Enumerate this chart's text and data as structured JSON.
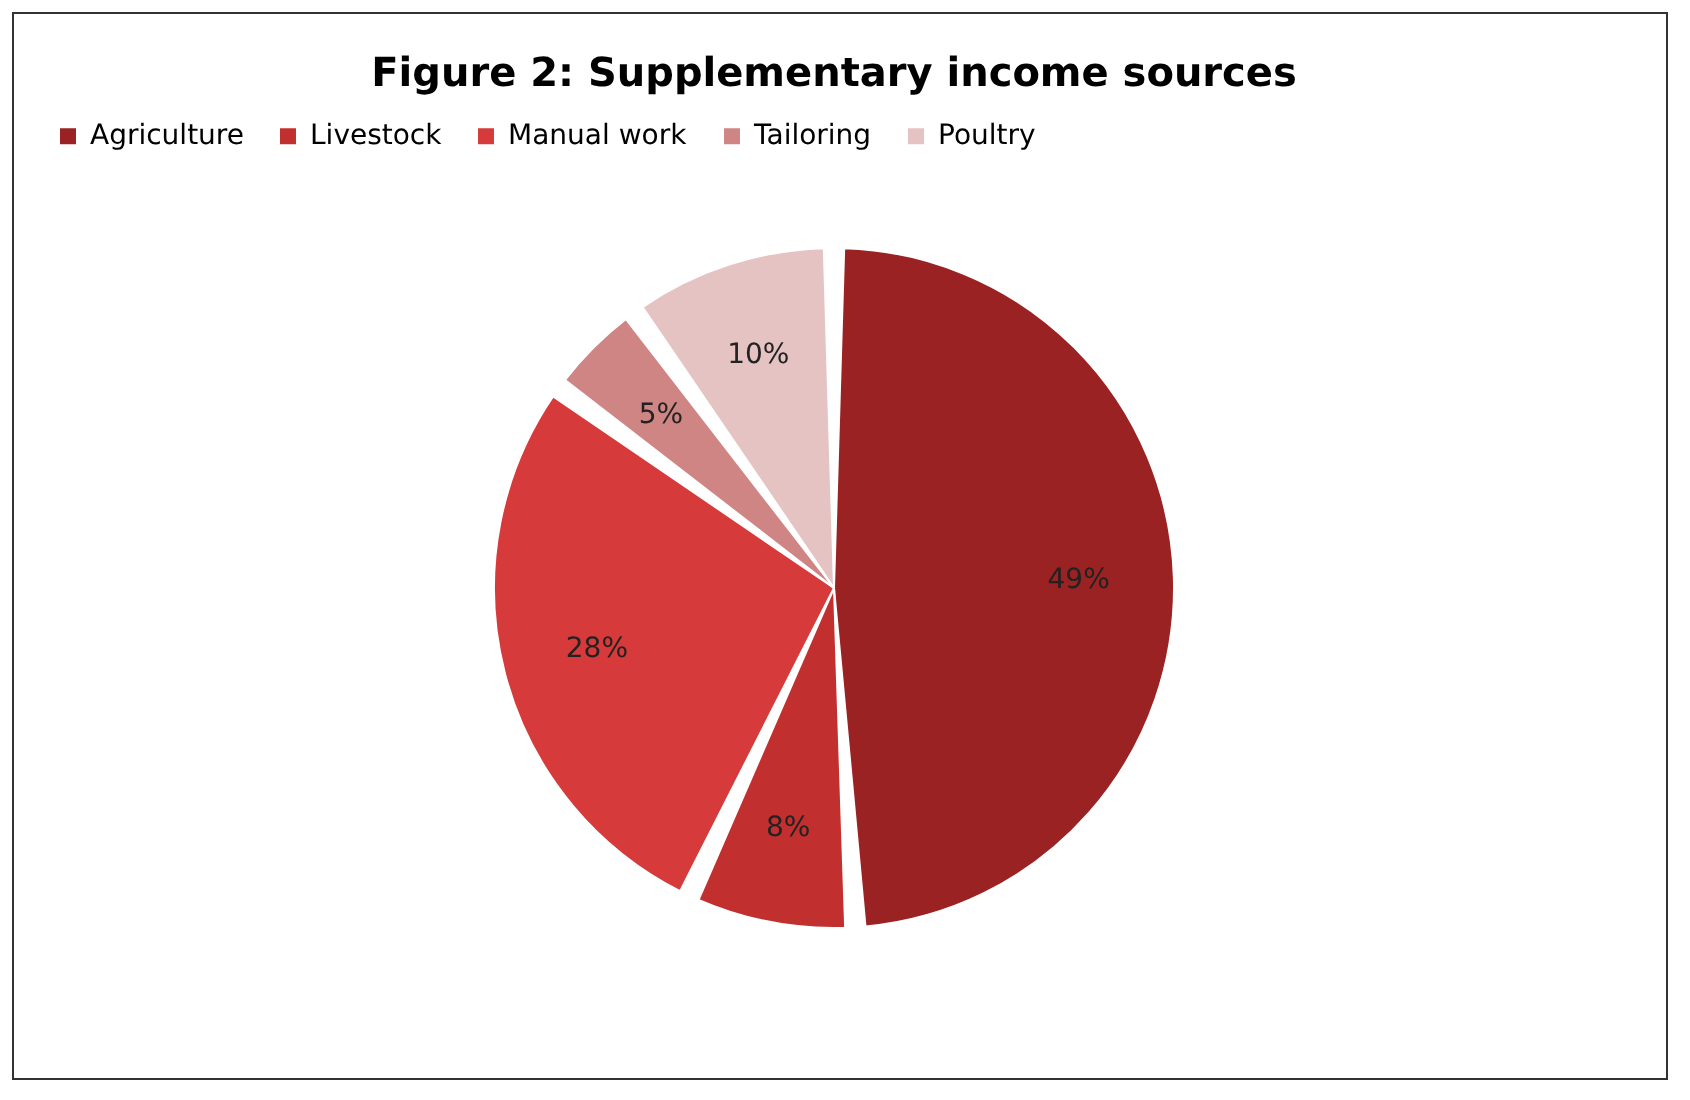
{
  "chart_data": {
    "type": "pie",
    "title": "Figure 2: Supplementary income sources",
    "categories": [
      "Agriculture",
      "Livestock",
      "Manual work",
      "Tailoring",
      "Poultry"
    ],
    "values": [
      49,
      8,
      28,
      5,
      10
    ],
    "colors": [
      "#9b2222",
      "#c22f2f",
      "#d63a3a",
      "#d08585",
      "#e6c3c3"
    ],
    "value_labels": [
      "49%",
      "8%",
      "28%",
      "5%",
      "10%"
    ],
    "legend": "top"
  }
}
